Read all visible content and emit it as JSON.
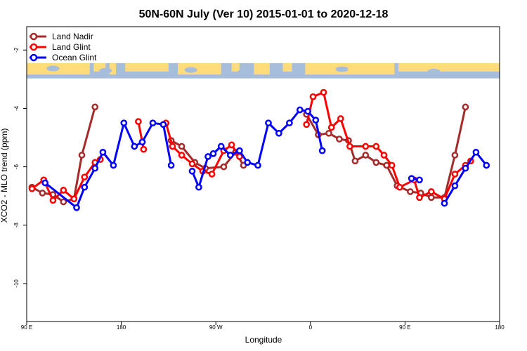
{
  "chart_data": {
    "type": "line",
    "title": "50N-60N July (Ver 10)   2015-01-01 to 2020-12-18",
    "xlabel": "Longitude",
    "ylabel": "XCO2 - MLO trend (ppm)",
    "xlim": [
      90,
      450
    ],
    "ylim": [
      -11.3,
      -1.2
    ],
    "x_ticks": [
      {
        "value": 90,
        "label": "90 E"
      },
      {
        "value": 162,
        "label": "180"
      },
      {
        "value": 234,
        "label": "90 W"
      },
      {
        "value": 306,
        "label": "0"
      },
      {
        "value": 378,
        "label": "90 E"
      },
      {
        "value": 450,
        "label": "180"
      }
    ],
    "y_ticks": [
      {
        "value": -2,
        "label": "-2"
      },
      {
        "value": -4,
        "label": "-4"
      },
      {
        "value": -6,
        "label": "-6"
      },
      {
        "value": -8,
        "label": "-8"
      },
      {
        "value": -10,
        "label": "-10"
      }
    ],
    "map_band": {
      "y_top": -2.45,
      "y_bottom": -2.97,
      "ocean_color": "#a7bddc",
      "land_color": "#fedb7b"
    },
    "legend_position": "top-left",
    "series": [
      {
        "name": "Land Nadir",
        "color": "#a52a2a",
        "segments": [
          [
            [
              94,
              -6.7
            ],
            [
              102,
              -6.9
            ],
            [
              110,
              -6.95
            ],
            [
              118,
              -7.2
            ],
            [
              126,
              -7.1
            ],
            [
              132,
              -5.6
            ],
            [
              142,
              -3.95
            ]
          ],
          [
            [
              200,
              -5.1
            ],
            [
              208,
              -5.3
            ],
            [
              218,
              -5.85
            ],
            [
              226,
              -6.05
            ],
            [
              240,
              -6
            ],
            [
              249,
              -5.5
            ],
            [
              255,
              -5.95
            ]
          ],
          [
            [
              303,
              -4.2
            ],
            [
              312,
              -4.9
            ],
            [
              320,
              -4.85
            ],
            [
              328,
              -5.05
            ],
            [
              335,
              -5.1
            ],
            [
              340,
              -5.8
            ],
            [
              348,
              -5.6
            ],
            [
              356,
              -5.85
            ],
            [
              364,
              -5.95
            ],
            [
              372,
              -6.65
            ],
            [
              382,
              -6.85
            ],
            [
              390,
              -6.9
            ],
            [
              398,
              -7.05
            ],
            [
              408,
              -7.05
            ],
            [
              416,
              -5.6
            ],
            [
              424,
              -3.95
            ]
          ]
        ]
      },
      {
        "name": "Land Glint",
        "color": "#ff0000",
        "segments": [
          [
            [
              94,
              -6.75
            ],
            [
              103,
              -6.45
            ],
            [
              110,
              -7.15
            ],
            [
              118,
              -6.8
            ],
            [
              126,
              -7.1
            ],
            [
              134,
              -6.35
            ],
            [
              142,
              -5.85
            ],
            [
              146,
              -5.75
            ]
          ],
          [
            [
              175,
              -4.45
            ],
            [
              179,
              -5.4
            ]
          ],
          [
            [
              196,
              -4.5
            ],
            [
              201,
              -5.3
            ],
            [
              208,
              -5.6
            ],
            [
              216,
              -5.9
            ],
            [
              224,
              -6.15
            ],
            [
              231,
              -6.25
            ],
            [
              240,
              -5.45
            ],
            [
              246,
              -5.25
            ],
            [
              252,
              -5.65
            ]
          ],
          [
            [
              303,
              -4.55
            ],
            [
              308,
              -3.6
            ],
            [
              316,
              -3.45
            ],
            [
              322,
              -4.65
            ],
            [
              329,
              -4.35
            ],
            [
              336,
              -5.3
            ],
            [
              348,
              -5.3
            ],
            [
              356,
              -5.3
            ],
            [
              362,
              -5.6
            ],
            [
              368,
              -5.95
            ],
            [
              374,
              -6.7
            ],
            [
              385,
              -6.45
            ],
            [
              389,
              -7.05
            ],
            [
              398,
              -6.85
            ],
            [
              408,
              -7.1
            ],
            [
              416,
              -6.25
            ],
            [
              424,
              -5.95
            ],
            [
              428,
              -5.8
            ]
          ]
        ]
      },
      {
        "name": "Ocean Glint",
        "color": "#0000ff",
        "segments": [
          [
            [
              104,
              -6.55
            ],
            [
              128,
              -7.4
            ],
            [
              134,
              -6.7
            ],
            [
              142,
              -6.05
            ],
            [
              148,
              -5.5
            ],
            [
              156,
              -5.95
            ],
            [
              164,
              -4.5
            ],
            [
              172,
              -5.3
            ],
            [
              178,
              -5.15
            ],
            [
              186,
              -4.5
            ],
            [
              194,
              -4.55
            ],
            [
              200,
              -5.95
            ]
          ],
          [
            [
              216,
              -6.15
            ],
            [
              221,
              -6.7
            ],
            [
              228,
              -5.65
            ],
            [
              232,
              -5.55
            ],
            [
              238,
              -5.3
            ],
            [
              245,
              -5.6
            ],
            [
              252,
              -5.45
            ],
            [
              258,
              -5.85
            ],
            [
              266,
              -5.95
            ],
            [
              274,
              -4.5
            ],
            [
              282,
              -4.85
            ],
            [
              290,
              -4.5
            ],
            [
              298,
              -4.05
            ],
            [
              304,
              -4.1
            ],
            [
              310,
              -4.4
            ],
            [
              315,
              -5.45
            ]
          ],
          [
            [
              383,
              -6.4
            ],
            [
              389,
              -6.45
            ]
          ],
          [
            [
              408,
              -7.25
            ],
            [
              416,
              -6.65
            ],
            [
              424,
              -6.05
            ],
            [
              432,
              -5.5
            ],
            [
              440,
              -5.95
            ]
          ]
        ]
      }
    ]
  }
}
